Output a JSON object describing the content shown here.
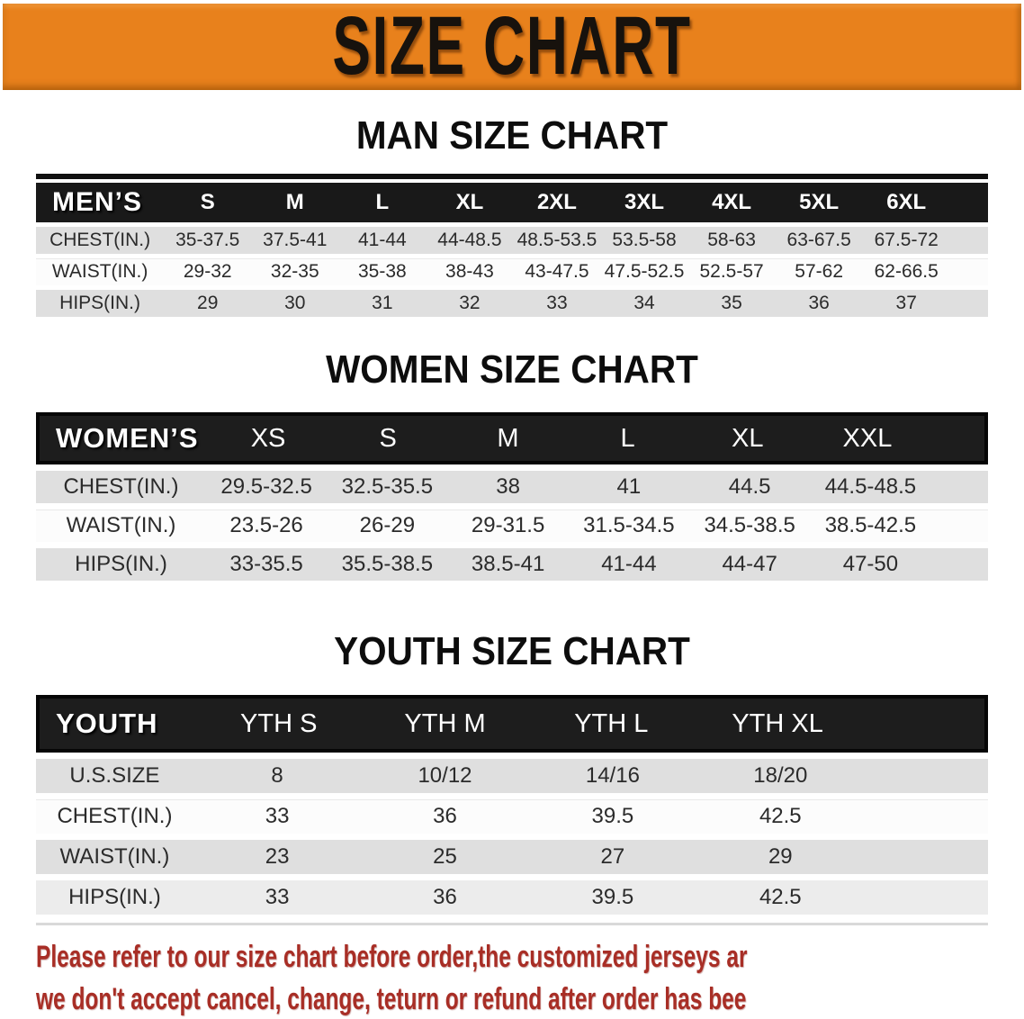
{
  "banner": {
    "title": "SIZE CHART"
  },
  "chart_data": [
    {
      "type": "table",
      "title": "MAN SIZE CHART",
      "header": [
        "MEN’S",
        "S",
        "M",
        "L",
        "XL",
        "2XL",
        "3XL",
        "4XL",
        "5XL",
        "6XL"
      ],
      "rows": [
        [
          "CHEST(IN.)",
          "35-37.5",
          "37.5-41",
          "41-44",
          "44-48.5",
          "48.5-53.5",
          "53.5-58",
          "58-63",
          "63-67.5",
          "67.5-72"
        ],
        [
          "WAIST(IN.)",
          "29-32",
          "32-35",
          "35-38",
          "38-43",
          "43-47.5",
          "47.5-52.5",
          "52.5-57",
          "57-62",
          "62-66.5"
        ],
        [
          "HIPS(IN.)",
          "29",
          "30",
          "31",
          "32",
          "33",
          "34",
          "35",
          "36",
          "37"
        ]
      ]
    },
    {
      "type": "table",
      "title": "WOMEN SIZE CHART",
      "header": [
        "WOMEN’S",
        "XS",
        "S",
        "M",
        "L",
        "XL",
        "XXL"
      ],
      "rows": [
        [
          "CHEST(IN.)",
          "29.5-32.5",
          "32.5-35.5",
          "38",
          "41",
          "44.5",
          "44.5-48.5"
        ],
        [
          "WAIST(IN.)",
          "23.5-26",
          "26-29",
          "29-31.5",
          "31.5-34.5",
          "34.5-38.5",
          "38.5-42.5"
        ],
        [
          "HIPS(IN.)",
          "33-35.5",
          "35.5-38.5",
          "38.5-41",
          "41-44",
          "44-47",
          "47-50"
        ]
      ]
    },
    {
      "type": "table",
      "title": "YOUTH SIZE CHART",
      "header": [
        "YOUTH",
        "YTH S",
        "YTH M",
        "YTH L",
        "YTH XL"
      ],
      "rows": [
        [
          "U.S.SIZE",
          "8",
          "10/12",
          "14/16",
          "18/20"
        ],
        [
          "CHEST(IN.)",
          "33",
          "36",
          "39.5",
          "42.5"
        ],
        [
          "WAIST(IN.)",
          "23",
          "25",
          "27",
          "29"
        ],
        [
          "HIPS(IN.)",
          "33",
          "36",
          "39.5",
          "42.5"
        ]
      ]
    }
  ],
  "disclaimer": {
    "line1": "Please refer to our size chart before order,the customized jerseys are special products,",
    "line2": "we don't accept cancel, change, teturn or refund after order has been placed!"
  },
  "colors": {
    "banner_orange": "#e8811c",
    "table_header_black": "#1a1a1a",
    "row_grey": "#dfdfdf",
    "row_white": "#fcfcfc",
    "disclaimer_red": "#a82e26"
  }
}
